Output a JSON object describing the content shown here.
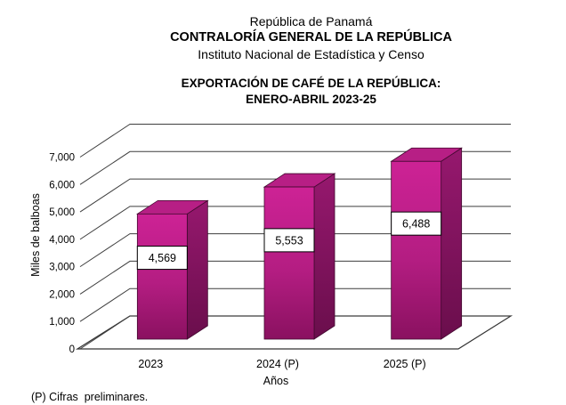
{
  "header": {
    "line1": "República de Panamá",
    "line2": "CONTRALORÍA GENERAL DE LA REPÚBLICA",
    "line3": "Instituto  Nacional de Estadística y Censo",
    "title_line1": "EXPORTACIÓN DE CAFÉ DE LA REPÚBLICA:",
    "title_line2": "ENERO-ABRIL 2023-25"
  },
  "footnote": "(P) Cifras  preliminares.",
  "chart_data": {
    "type": "bar",
    "style": "3d-column",
    "title": "EXPORTACIÓN DE CAFÉ DE LA REPÚBLICA: ENERO-ABRIL 2023-25",
    "categories": [
      "2023",
      "2024 (P)",
      "2025 (P)"
    ],
    "values": [
      4569,
      5553,
      6488
    ],
    "value_labels": [
      "4,569",
      "5,553",
      "6,488"
    ],
    "xlabel": "Años",
    "ylabel": "Miles de balboas",
    "ylim": [
      0,
      7000
    ],
    "ytick_step": 1000,
    "ytick_labels": [
      "0",
      "1,000",
      "2,000",
      "3,000",
      "4,000",
      "5,000",
      "6,000",
      "7,000"
    ],
    "grid": "horizontal-back-wall",
    "legend": "none",
    "colors": {
      "bar_front_top": "#cd2295",
      "bar_front_mid": "#b41d82",
      "bar_front_bottom": "#8a1160",
      "bar_side_top": "#96186e",
      "bar_side_bottom": "#6a0e4c",
      "bar_top_face": "#b71f85",
      "bar_outline": "#42092f",
      "grid_line": "#3f3f3f",
      "axis_line": "#333333",
      "label_box_fill": "#ffffff",
      "label_box_border": "#000000",
      "text": "#000000",
      "background": "#ffffff"
    }
  }
}
